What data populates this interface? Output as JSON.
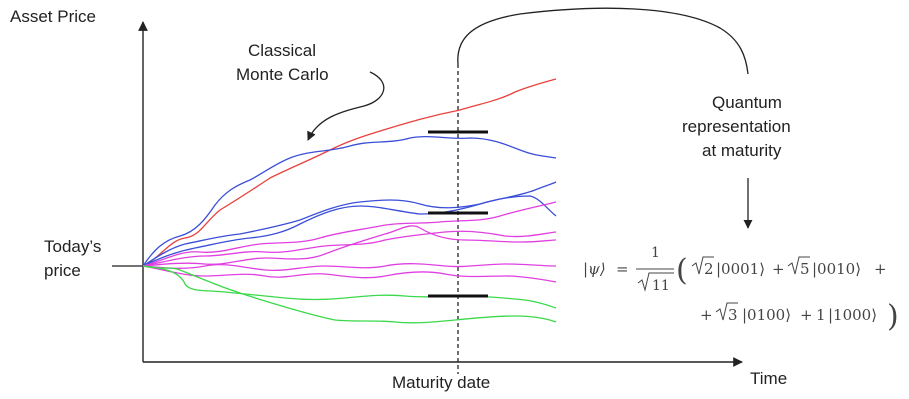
{
  "labels": {
    "y_axis": "Asset Price",
    "x_axis": "Time",
    "today_line1": "Today’s",
    "today_line2": "price",
    "maturity": "Maturity date",
    "classical_line1": "Classical",
    "classical_line2": "Monte Carlo",
    "quantum_line1": "Quantum",
    "quantum_line2": "representation",
    "quantum_line3": "at maturity"
  },
  "formula": {
    "psi": "|ψ⟩",
    "equals": "=",
    "frac_num": "1",
    "frac_den": "11",
    "sqrt_2": "2",
    "ket_0001": "|0001⟩",
    "plus": "+",
    "sqrt_5": "5",
    "ket_0010": "|0010⟩",
    "sqrt_3": "3",
    "ket_0100": "|0100⟩",
    "one": "1",
    "ket_1000": "|1000⟩"
  },
  "path_colors": {
    "red": "#e8413c",
    "blue": "#3b4fd8",
    "magenta": "#e040e0",
    "green": "#3bd94a"
  }
}
